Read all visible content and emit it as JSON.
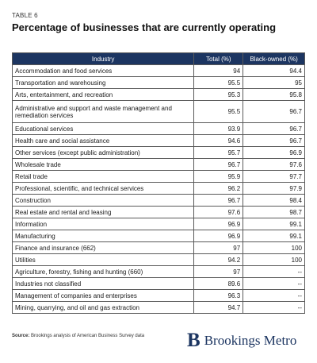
{
  "header": {
    "eyebrow": "TABLE 6",
    "title": "Percentage of businesses that are currently operating"
  },
  "table": {
    "columns": [
      "Industry",
      "Total (%)",
      "Black-owned (%)"
    ],
    "rows": [
      {
        "industry": "Accommodation and food services",
        "total": "94",
        "black": "94.4"
      },
      {
        "industry": "Transportation and warehousing",
        "total": "95.5",
        "black": "95"
      },
      {
        "industry": "Arts, entertainment, and recreation",
        "total": "95.3",
        "black": "95.8"
      },
      {
        "industry": "Administrative and support and waste management and remediation services",
        "total": "95.5",
        "black": "96.7"
      },
      {
        "industry": "Educational services",
        "total": "93.9",
        "black": "96.7"
      },
      {
        "industry": "Health care and social assistance",
        "total": "94.6",
        "black": "96.7"
      },
      {
        "industry": "Other services (except public administration)",
        "total": "95.7",
        "black": "96.9"
      },
      {
        "industry": "Wholesale trade",
        "total": "96.7",
        "black": "97.6"
      },
      {
        "industry": "Retail trade",
        "total": "95.9",
        "black": "97.7"
      },
      {
        "industry": "Professional, scientific, and technical services",
        "total": "96.2",
        "black": "97.9"
      },
      {
        "industry": "Construction",
        "total": "96.7",
        "black": "98.4"
      },
      {
        "industry": "Real estate and rental and leasing",
        "total": "97.6",
        "black": "98.7"
      },
      {
        "industry": "Information",
        "total": "96.9",
        "black": "99.1"
      },
      {
        "industry": "Manufacturing",
        "total": "96.9",
        "black": "99.1"
      },
      {
        "industry": "Finance and insurance (662)",
        "total": "97",
        "black": "100"
      },
      {
        "industry": "Utilities",
        "total": "94.2",
        "black": "100"
      },
      {
        "industry": "Agriculture, forestry, fishing and hunting (660)",
        "total": "97",
        "black": "--"
      },
      {
        "industry": "Industries not classified",
        "total": "89.6",
        "black": "--"
      },
      {
        "industry": "Management of companies and enterprises",
        "total": "96.3",
        "black": "--"
      },
      {
        "industry": "Mining, quarrying, and oil and gas extraction",
        "total": "94.7",
        "black": "--"
      }
    ]
  },
  "footer": {
    "source_label": "Source:",
    "source_text": "Brookings analysis of American Business Survey data",
    "logo_mark": "B",
    "logo_text": "Brookings Metro",
    "brand_color": "#1c3561"
  }
}
